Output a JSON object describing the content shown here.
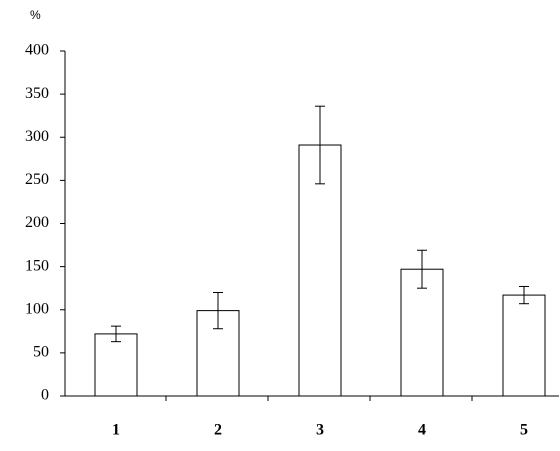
{
  "chart_data": {
    "type": "bar",
    "y_label": "%",
    "categories": [
      "1",
      "2",
      "3",
      "4",
      "5"
    ],
    "values": [
      72,
      99,
      291,
      147,
      117
    ],
    "errors": [
      9,
      21,
      45,
      22,
      10
    ],
    "color": "#ffffff",
    "ylim": [
      0,
      400
    ],
    "yticks": [
      0,
      50,
      100,
      150,
      200,
      250,
      300,
      350,
      400
    ]
  }
}
